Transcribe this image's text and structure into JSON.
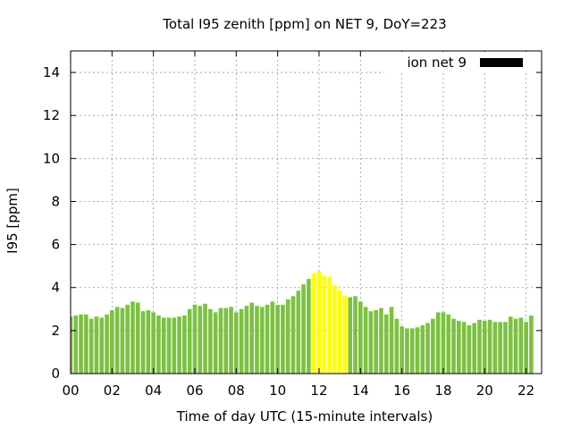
{
  "chart_data": {
    "type": "bar",
    "title": "Total I95 zenith [ppm] on NET 9, DoY=223",
    "xlabel": "Time of day UTC (15-minute intervals)",
    "ylabel": "I95 [ppm]",
    "xlim": [
      0,
      22.75
    ],
    "ylim": [
      0,
      15
    ],
    "yticks": [
      0,
      2,
      4,
      6,
      8,
      10,
      12,
      14
    ],
    "xtick_values": [
      0,
      2,
      4,
      6,
      8,
      10,
      12,
      14,
      16,
      18,
      20,
      22
    ],
    "xtick_labels": [
      "00",
      "02",
      "04",
      "06",
      "08",
      "10",
      "12",
      "14",
      "16",
      "18",
      "20",
      "22"
    ],
    "grid": true,
    "legend": {
      "label": "ion net 9",
      "position": "top-right",
      "swatch_color": "#000000"
    },
    "colors": {
      "normal": "#7cc142",
      "highlight": "#ffff00"
    },
    "highlight_range_hours": [
      11.75,
      13.5
    ],
    "bar_interval_hours": 0.25,
    "values": [
      2.65,
      2.7,
      2.75,
      2.75,
      2.55,
      2.65,
      2.6,
      2.75,
      2.95,
      3.1,
      3.05,
      3.2,
      3.35,
      3.3,
      2.9,
      2.95,
      2.85,
      2.7,
      2.6,
      2.6,
      2.6,
      2.65,
      2.7,
      3.0,
      3.2,
      3.15,
      3.25,
      3.0,
      2.85,
      3.05,
      3.05,
      3.1,
      2.85,
      3.0,
      3.15,
      3.3,
      3.15,
      3.1,
      3.2,
      3.35,
      3.2,
      3.2,
      3.45,
      3.6,
      3.85,
      4.15,
      4.4,
      4.65,
      4.75,
      4.55,
      4.5,
      4.1,
      3.85,
      3.6,
      3.55,
      3.6,
      3.35,
      3.1,
      2.9,
      2.95,
      3.05,
      2.75,
      3.1,
      2.55,
      2.2,
      2.1,
      2.1,
      2.15,
      2.25,
      2.35,
      2.55,
      2.85,
      2.85,
      2.75,
      2.55,
      2.45,
      2.4,
      2.25,
      2.35,
      2.5,
      2.45,
      2.5,
      2.4,
      2.4,
      2.4,
      2.65,
      2.55,
      2.6,
      2.4,
      2.7
    ]
  }
}
